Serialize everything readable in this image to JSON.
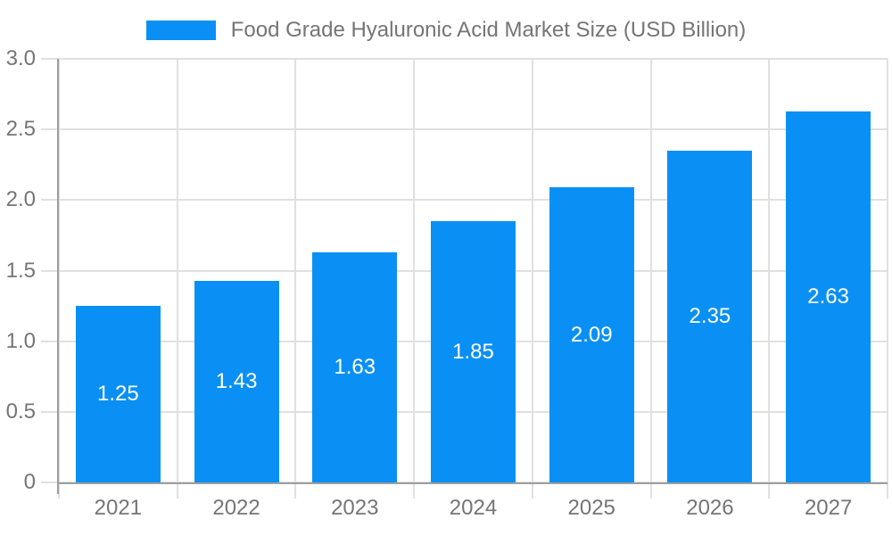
{
  "chart_data": {
    "type": "bar",
    "title": "Food Grade Hyaluronic Acid Market Size (USD Billion)",
    "categories": [
      "2021",
      "2022",
      "2023",
      "2024",
      "2025",
      "2026",
      "2027"
    ],
    "values": [
      1.25,
      1.43,
      1.63,
      1.85,
      2.09,
      2.35,
      2.63
    ],
    "value_labels": [
      "1.25",
      "1.43",
      "1.63",
      "1.85",
      "2.09",
      "2.35",
      "2.63"
    ],
    "xlabel": "",
    "ylabel": "",
    "ylim": [
      0,
      3
    ],
    "yticks": [
      {
        "value": 0,
        "label": "0"
      },
      {
        "value": 0.5,
        "label": "0.5"
      },
      {
        "value": 1.0,
        "label": "1.0"
      },
      {
        "value": 1.5,
        "label": "1.5"
      },
      {
        "value": 2.0,
        "label": "2.0"
      },
      {
        "value": 2.5,
        "label": "2.5"
      },
      {
        "value": 3.0,
        "label": "3.0"
      }
    ],
    "grid": true,
    "legend_position": "top-center",
    "bar_label_position": "inside-center"
  },
  "legend": {
    "items": [
      {
        "label": "Food Grade Hyaluronic Acid Market Size (USD Billion)",
        "color": "#0a90f4"
      }
    ]
  },
  "colors": {
    "bar": "#0a90f4",
    "axis_line": "#9e9e9e",
    "gridline": "#e0e0e0",
    "tick_label": "#757575",
    "bar_value_label": "#ffffff",
    "background": "#ffffff"
  }
}
